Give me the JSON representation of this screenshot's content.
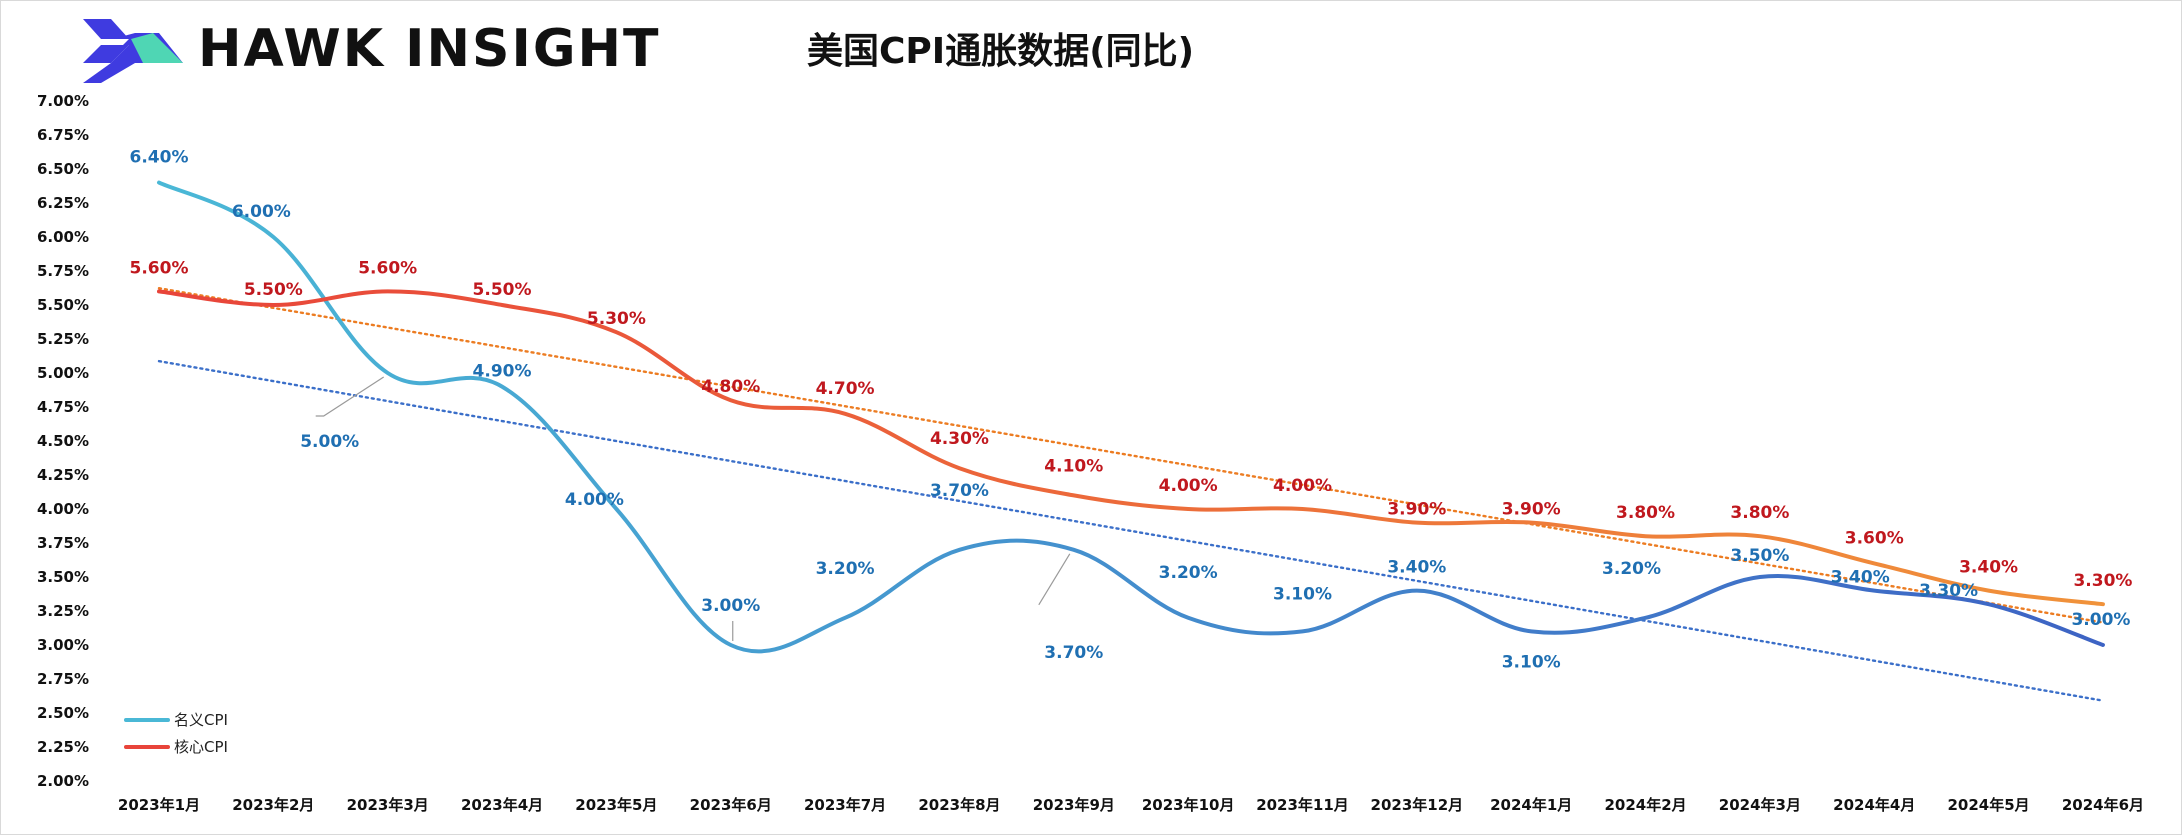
{
  "brand": {
    "name": "HAWK INSIGHT",
    "logo_icon": "hawk-insight-logo-icon",
    "colors": {
      "navy": "#3f3be0",
      "mint": "#4fd6b4",
      "text": "#111111"
    }
  },
  "chart_data": {
    "type": "line",
    "title": "美国CPI通胀数据(同比)",
    "xlabel": "",
    "ylabel": "",
    "ylim": [
      2.0,
      7.0
    ],
    "yticks": [
      "7.00%",
      "6.75%",
      "6.50%",
      "6.25%",
      "6.00%",
      "5.75%",
      "5.50%",
      "5.25%",
      "5.00%",
      "4.75%",
      "4.50%",
      "4.25%",
      "4.00%",
      "3.75%",
      "3.50%",
      "3.25%",
      "3.00%",
      "2.75%",
      "2.50%",
      "2.25%",
      "2.00%"
    ],
    "grid": false,
    "legend_position": "bottom-left",
    "categories": [
      "2023年1月",
      "2023年2月",
      "2023年3月",
      "2023年4月",
      "2023年5月",
      "2023年6月",
      "2023年7月",
      "2023年8月",
      "2023年9月",
      "2023年10月",
      "2023年11月",
      "2023年12月",
      "2024年1月",
      "2024年2月",
      "2024年3月",
      "2024年4月",
      "2024年5月",
      "2024年6月"
    ],
    "series": [
      {
        "name": "名义CPI",
        "values": [
          6.4,
          6.0,
          5.0,
          4.9,
          4.0,
          3.0,
          3.2,
          3.7,
          3.7,
          3.2,
          3.1,
          3.4,
          3.1,
          3.2,
          3.5,
          3.4,
          3.3,
          3.0
        ],
        "labels": [
          "6.40%",
          "6.00%",
          "5.00%",
          "4.90%",
          "4.00%",
          "3.00%",
          "3.20%",
          "3.70%",
          "3.70%",
          "3.20%",
          "3.10%",
          "3.40%",
          "3.10%",
          "3.20%",
          "3.50%",
          "3.40%",
          "3.30%",
          "3.00%"
        ],
        "color_start": "#4ab8d6",
        "color_end": "#3d63c4",
        "label_color": "#1f6fb2",
        "trend_color": "#3b6fc9"
      },
      {
        "name": "核心CPI",
        "values": [
          5.6,
          5.5,
          5.6,
          5.5,
          5.3,
          4.8,
          4.7,
          4.3,
          4.1,
          4.0,
          4.0,
          3.9,
          3.9,
          3.8,
          3.8,
          3.6,
          3.4,
          3.3
        ],
        "labels": [
          "5.60%",
          "5.50%",
          "5.60%",
          "5.50%",
          "5.30%",
          "4.80%",
          "4.70%",
          "4.30%",
          "4.10%",
          "4.00%",
          "4.00%",
          "3.90%",
          "3.90%",
          "3.80%",
          "3.80%",
          "3.60%",
          "3.40%",
          "3.30%"
        ],
        "color_start": "#e8443a",
        "color_end": "#f0923a",
        "label_color": "#c0181e",
        "trend_color": "#ec7c22"
      }
    ]
  }
}
